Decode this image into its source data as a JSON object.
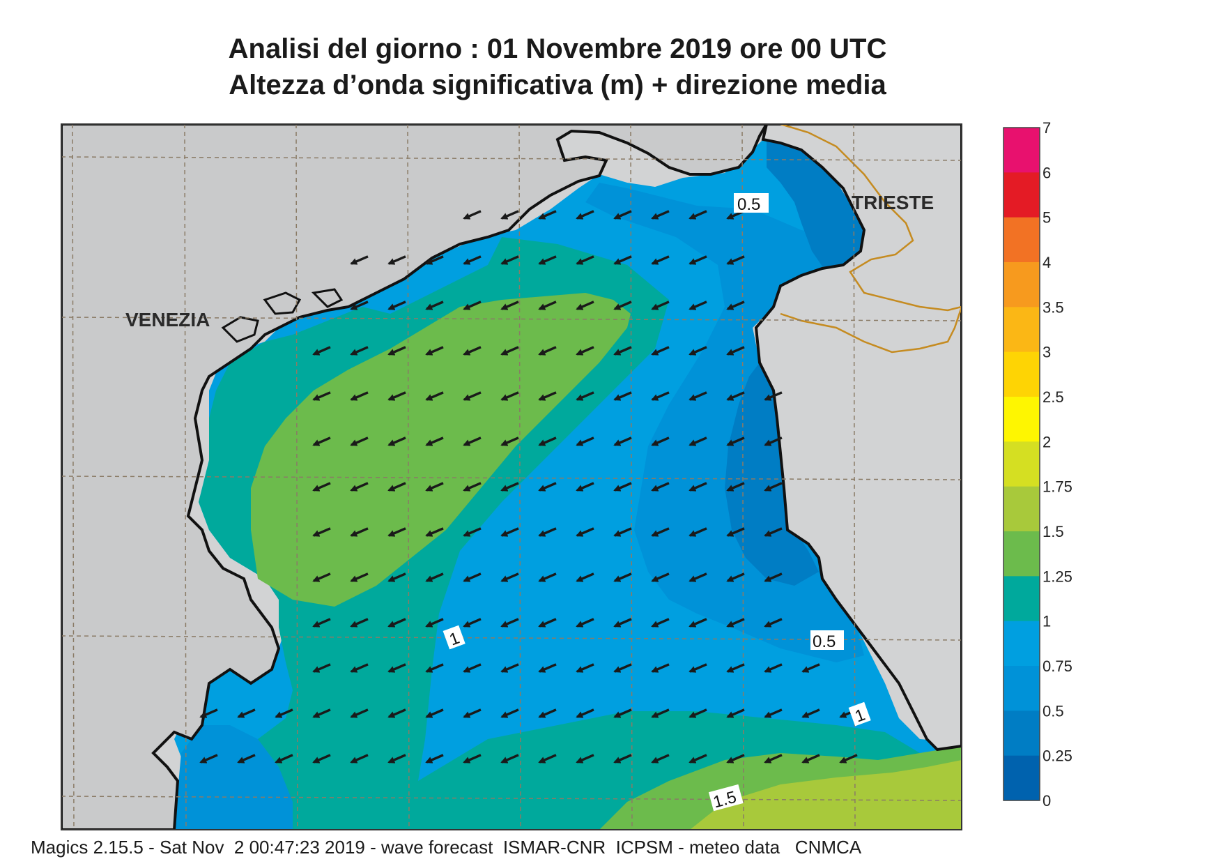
{
  "title": {
    "line1": "Analisi del giorno :  01 Novembre  2019   ore 00 UTC",
    "line2": "Altezza d’onda significativa (m) + direzione media"
  },
  "colorbar": {
    "ticks": [
      "7",
      "6",
      "5",
      "4",
      "3.5",
      "3",
      "2.5",
      "2",
      "1.75",
      "1.5",
      "1.25",
      "1",
      "0.75",
      "0.5",
      "0.25",
      "0"
    ],
    "colors": [
      "#e8116e",
      "#e41b25",
      "#f27224",
      "#f79a1e",
      "#fbb715",
      "#fed404",
      "#fef601",
      "#d5df22",
      "#a8c93b",
      "#6cbb4c",
      "#00a99c",
      "#009fe0",
      "#0092d8",
      "#007dc4",
      "#0062ae"
    ]
  },
  "places": {
    "venezia": "VENEZIA",
    "trieste": "TRIESTE"
  },
  "contour_labels": {
    "c05_top": "0.5",
    "c05_right": "0.5",
    "c1_mid": "1",
    "c1_right": "1",
    "c15_bottom": "1.5"
  },
  "footer": "Magics 2.15.5 - Sat Nov  2 00:47:23 2019 - wave forecast  ISMAR-CNR  ICPSM - meteo data   CNMCA"
}
